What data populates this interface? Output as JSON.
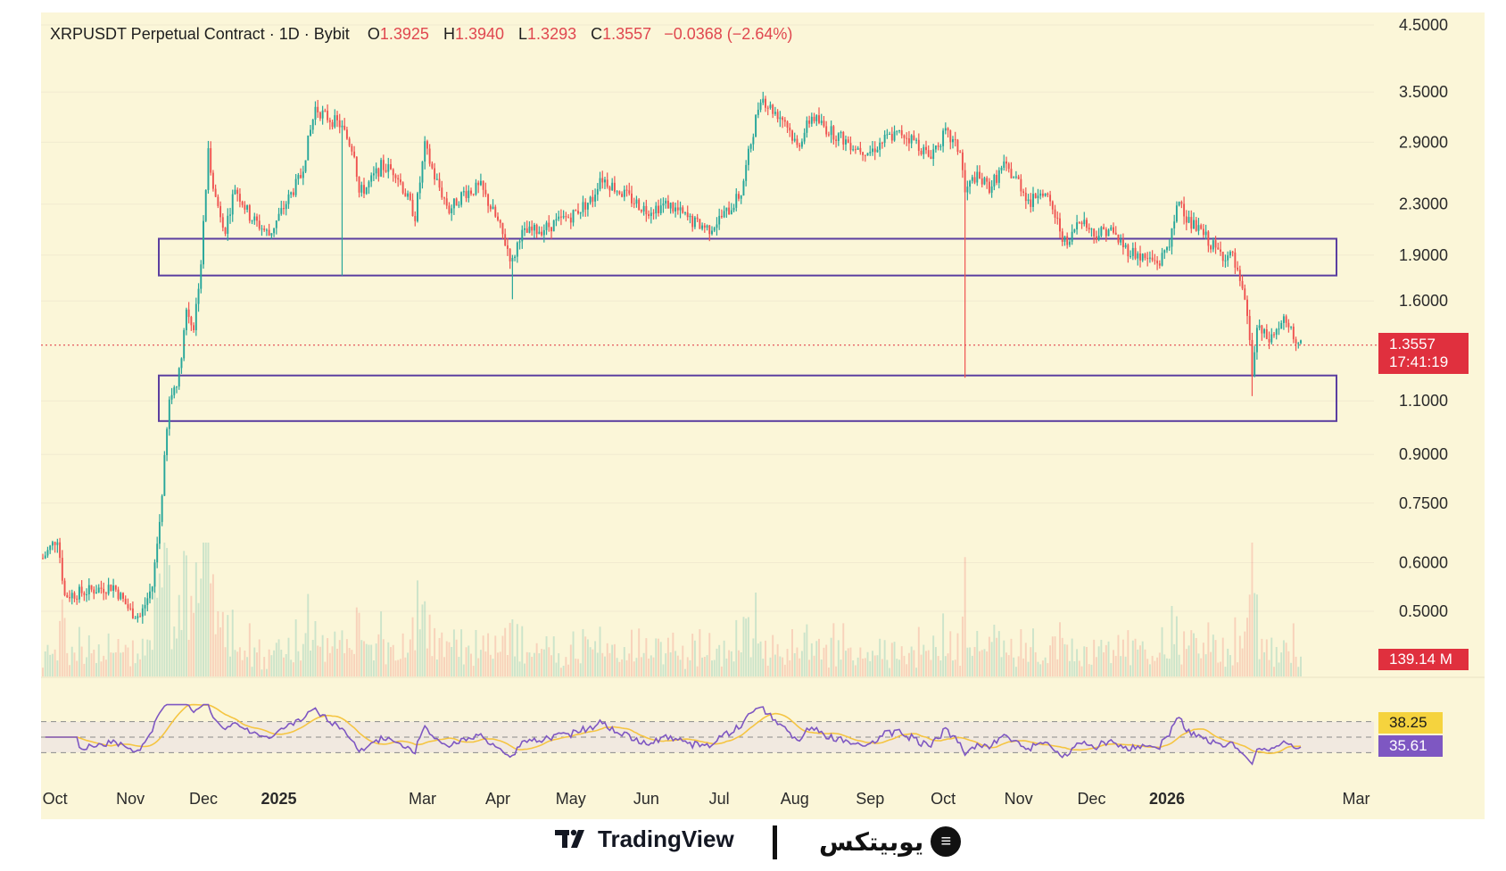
{
  "legend": {
    "symbol": "XRPUSDT Perpetual Contract · 1D · Bybit",
    "o_label": "O",
    "o_value": "1.3925",
    "h_label": "H",
    "h_value": "1.3940",
    "l_label": "L",
    "l_value": "1.3293",
    "c_label": "C",
    "c_value": "1.3557",
    "change": "−0.0368 (−2.64%)"
  },
  "price_tag": {
    "price": "1.3557",
    "countdown": "17:41:19"
  },
  "volume_tag": "139.14 M",
  "rsi": {
    "upper_level": "80.00",
    "ma_value": "38.25",
    "rsi_value": "35.61"
  },
  "footer": {
    "tv_brand": "TradingView",
    "partner_brand": "یوبیتکس"
  },
  "colors": {
    "background": "#fbf6d8",
    "up": "#26a69a",
    "down": "#ef5350",
    "zone": "#5b3fa0",
    "rsi_line": "#7e57c2",
    "rsi_ma": "#f5c542",
    "price_line": "#e0303e"
  },
  "chart_data": {
    "type": "candlestick",
    "y_scale": "log",
    "ylim": [
      0.42,
      4.6
    ],
    "y_ticks": [
      "4.5000",
      "3.5000",
      "2.9000",
      "2.3000",
      "1.9000",
      "1.6000",
      "1.1000",
      "0.9000",
      "0.7500",
      "0.6000",
      "0.5000"
    ],
    "x_ticks": [
      "Oct",
      "Nov",
      "Dec",
      "2025",
      "Mar",
      "Apr",
      "May",
      "Jun",
      "Jul",
      "Aug",
      "Sep",
      "Oct",
      "Nov",
      "Dec",
      "2026",
      "Mar"
    ],
    "support_zones": [
      {
        "low": 1.76,
        "high": 2.02
      },
      {
        "low": 1.02,
        "high": 1.21
      }
    ],
    "current_price": 1.3557,
    "price_path": [
      [
        "2024-09-26",
        0.61
      ],
      [
        "2024-10-02",
        0.66
      ],
      [
        "2024-10-05",
        0.53
      ],
      [
        "2024-10-15",
        0.54
      ],
      [
        "2024-10-25",
        0.55
      ],
      [
        "2024-11-01",
        0.5
      ],
      [
        "2024-11-05",
        0.49
      ],
      [
        "2024-11-10",
        0.55
      ],
      [
        "2024-11-13",
        0.7
      ],
      [
        "2024-11-17",
        1.1
      ],
      [
        "2024-11-21",
        1.22
      ],
      [
        "2024-11-24",
        1.55
      ],
      [
        "2024-11-27",
        1.45
      ],
      [
        "2024-11-30",
        1.85
      ],
      [
        "2024-12-03",
        2.8
      ],
      [
        "2024-12-06",
        2.35
      ],
      [
        "2024-12-10",
        2.1
      ],
      [
        "2024-12-14",
        2.45
      ],
      [
        "2024-12-20",
        2.2
      ],
      [
        "2024-12-28",
        2.05
      ],
      [
        "2025-01-05",
        2.35
      ],
      [
        "2025-01-10",
        2.55
      ],
      [
        "2025-01-16",
        3.3
      ],
      [
        "2025-01-20",
        3.2
      ],
      [
        "2025-01-26",
        3.1
      ],
      [
        "2025-02-01",
        2.8
      ],
      [
        "2025-02-03",
        2.4
      ],
      [
        "2025-02-06",
        2.45
      ],
      [
        "2025-02-12",
        2.65
      ],
      [
        "2025-02-18",
        2.6
      ],
      [
        "2025-02-26",
        2.2
      ],
      [
        "2025-03-02",
        2.85
      ],
      [
        "2025-03-06",
        2.55
      ],
      [
        "2025-03-12",
        2.25
      ],
      [
        "2025-03-18",
        2.4
      ],
      [
        "2025-03-25",
        2.45
      ],
      [
        "2025-04-01",
        2.15
      ],
      [
        "2025-04-07",
        1.85
      ],
      [
        "2025-04-10",
        2.05
      ],
      [
        "2025-04-20",
        2.1
      ],
      [
        "2025-05-01",
        2.2
      ],
      [
        "2025-05-10",
        2.35
      ],
      [
        "2025-05-13",
        2.55
      ],
      [
        "2025-05-22",
        2.4
      ],
      [
        "2025-06-01",
        2.25
      ],
      [
        "2025-06-10",
        2.3
      ],
      [
        "2025-06-20",
        2.15
      ],
      [
        "2025-06-27",
        2.1
      ],
      [
        "2025-07-05",
        2.25
      ],
      [
        "2025-07-10",
        2.4
      ],
      [
        "2025-07-14",
        2.9
      ],
      [
        "2025-07-18",
        3.45
      ],
      [
        "2025-07-22",
        3.3
      ],
      [
        "2025-07-28",
        3.15
      ],
      [
        "2025-08-02",
        2.85
      ],
      [
        "2025-08-08",
        3.2
      ],
      [
        "2025-08-14",
        3.05
      ],
      [
        "2025-08-20",
        2.95
      ],
      [
        "2025-08-26",
        2.85
      ],
      [
        "2025-09-01",
        2.8
      ],
      [
        "2025-09-08",
        2.95
      ],
      [
        "2025-09-14",
        3.0
      ],
      [
        "2025-09-20",
        2.9
      ],
      [
        "2025-09-25",
        2.75
      ],
      [
        "2025-10-02",
        3.0
      ],
      [
        "2025-10-08",
        2.8
      ],
      [
        "2025-10-10",
        2.4
      ],
      [
        "2025-10-14",
        2.55
      ],
      [
        "2025-10-20",
        2.45
      ],
      [
        "2025-10-26",
        2.65
      ],
      [
        "2025-11-01",
        2.5
      ],
      [
        "2025-11-06",
        2.3
      ],
      [
        "2025-11-10",
        2.45
      ],
      [
        "2025-11-15",
        2.25
      ],
      [
        "2025-11-21",
        1.95
      ],
      [
        "2025-11-26",
        2.2
      ],
      [
        "2025-12-02",
        2.05
      ],
      [
        "2025-12-08",
        2.1
      ],
      [
        "2025-12-15",
        1.95
      ],
      [
        "2025-12-22",
        1.88
      ],
      [
        "2025-12-29",
        1.85
      ],
      [
        "2026-01-03",
        2.05
      ],
      [
        "2026-01-06",
        2.35
      ],
      [
        "2026-01-10",
        2.15
      ],
      [
        "2026-01-16",
        2.05
      ],
      [
        "2026-01-22",
        1.92
      ],
      [
        "2026-01-28",
        1.88
      ],
      [
        "2026-01-31",
        1.7
      ],
      [
        "2026-02-03",
        1.52
      ],
      [
        "2026-02-05",
        1.22
      ],
      [
        "2026-02-07",
        1.44
      ],
      [
        "2026-02-12",
        1.38
      ],
      [
        "2026-02-16",
        1.45
      ],
      [
        "2026-02-18",
        1.48
      ],
      [
        "2026-02-22",
        1.4
      ],
      [
        "2026-02-25",
        1.3557
      ]
    ],
    "notable_wicks": [
      {
        "date": "2025-01-27",
        "low": 1.76
      },
      {
        "date": "2025-04-07",
        "low": 1.61
      },
      {
        "date": "2025-10-10",
        "low": 1.2
      },
      {
        "date": "2026-02-05",
        "low": 1.12
      }
    ]
  }
}
